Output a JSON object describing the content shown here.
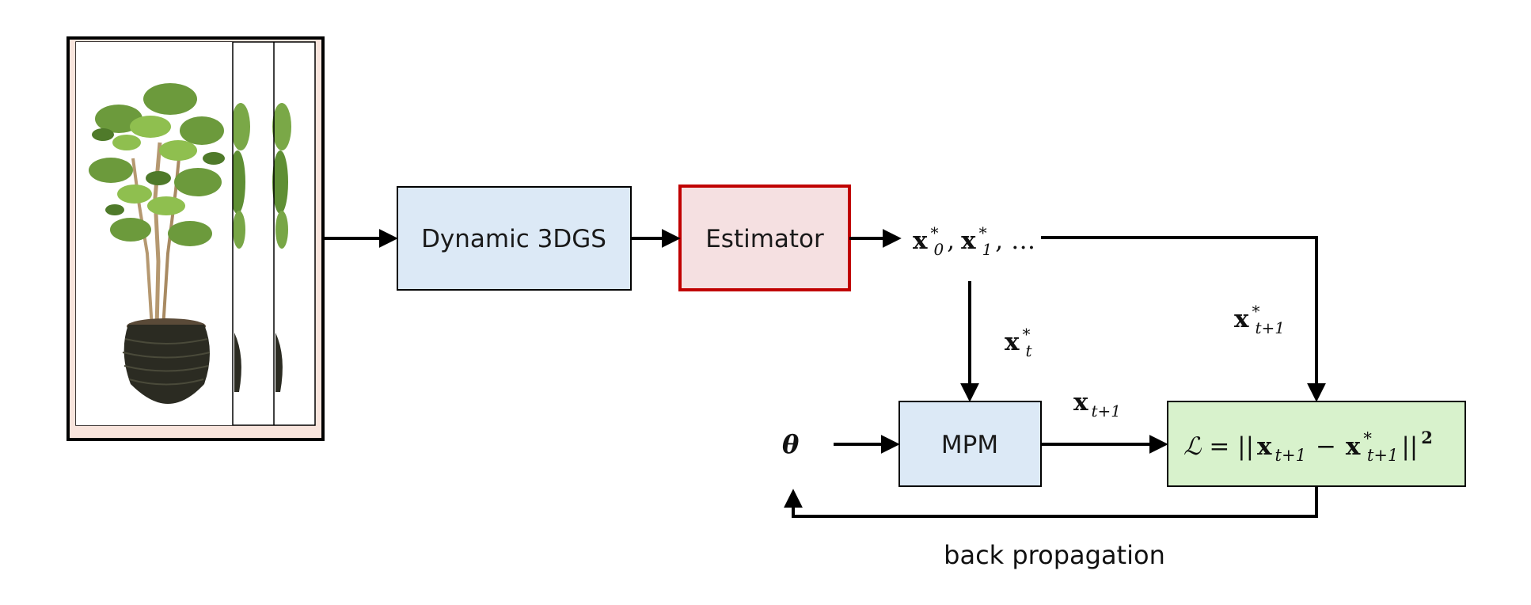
{
  "colors": {
    "blue_box_fill": "#dce9f6",
    "estimator_fill": "#f5e0e1",
    "estimator_border": "#c00000",
    "loss_fill": "#d8f2cc",
    "frame_fill": "#f8e4dc",
    "stroke": "#000000",
    "leaf_green": "#6c9a3c",
    "pot_dark": "#2b2b22"
  },
  "nodes": {
    "dynamic_3dgs": "Dynamic 3DGS",
    "estimator": "Estimator",
    "mpm": "MPM"
  },
  "symbols": {
    "bold_x": "x",
    "star": "*",
    "sub_0": "0",
    "sub_1": "1",
    "sub_t": "t",
    "sub_t1": "t+1",
    "comma": ",",
    "ellipsis": "…",
    "theta": "θ",
    "loss_script_l": "ℒ",
    "loss_eq": "= ||",
    "loss_minus": "−",
    "loss_close": "||",
    "loss_power": "2"
  },
  "caption": {
    "backprop": "back propagation"
  }
}
